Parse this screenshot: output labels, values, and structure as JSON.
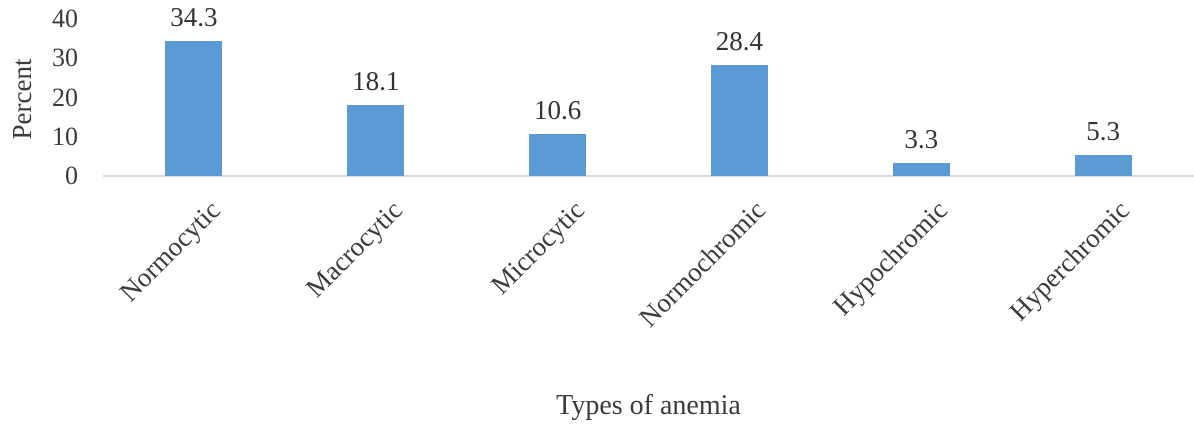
{
  "chart_data": {
    "type": "bar",
    "title": "",
    "categories": [
      "Normocytic",
      "Macrocytic",
      "Microcytic",
      "Normochromic",
      "Hypochromic",
      "Hyperchromic"
    ],
    "values": [
      34.3,
      18.1,
      10.6,
      28.4,
      3.3,
      5.3
    ],
    "data_labels": [
      "34.3",
      "18.1",
      "10.6",
      "28.4",
      "3.3",
      "5.3"
    ],
    "xlabel": "Types of anemia",
    "ylabel": "Percent",
    "yticks": [
      0,
      10,
      20,
      30,
      40
    ],
    "ylim": [
      0,
      40
    ],
    "grid": false,
    "legend": false,
    "bar_color": "#5b9bd5",
    "axis_line_color": "#d9d9d9",
    "text_color": "#3c3c3c"
  }
}
